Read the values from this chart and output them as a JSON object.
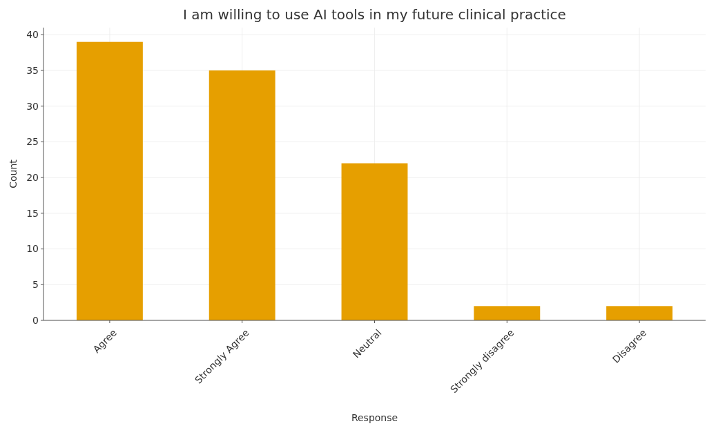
{
  "chart_data": {
    "type": "bar",
    "title": "I am willing to use AI tools in my future clinical practice",
    "xlabel": "Response",
    "ylabel": "Count",
    "categories": [
      "Agree",
      "Strongly Agree",
      "Neutral",
      "Strongly disagree",
      "Disagree"
    ],
    "values": [
      39,
      35,
      22,
      2,
      2
    ],
    "color": "#e69f00",
    "ylim": [
      0,
      41
    ],
    "yticks": [
      0,
      5,
      10,
      15,
      20,
      25,
      30,
      35,
      40
    ],
    "grid": true
  }
}
